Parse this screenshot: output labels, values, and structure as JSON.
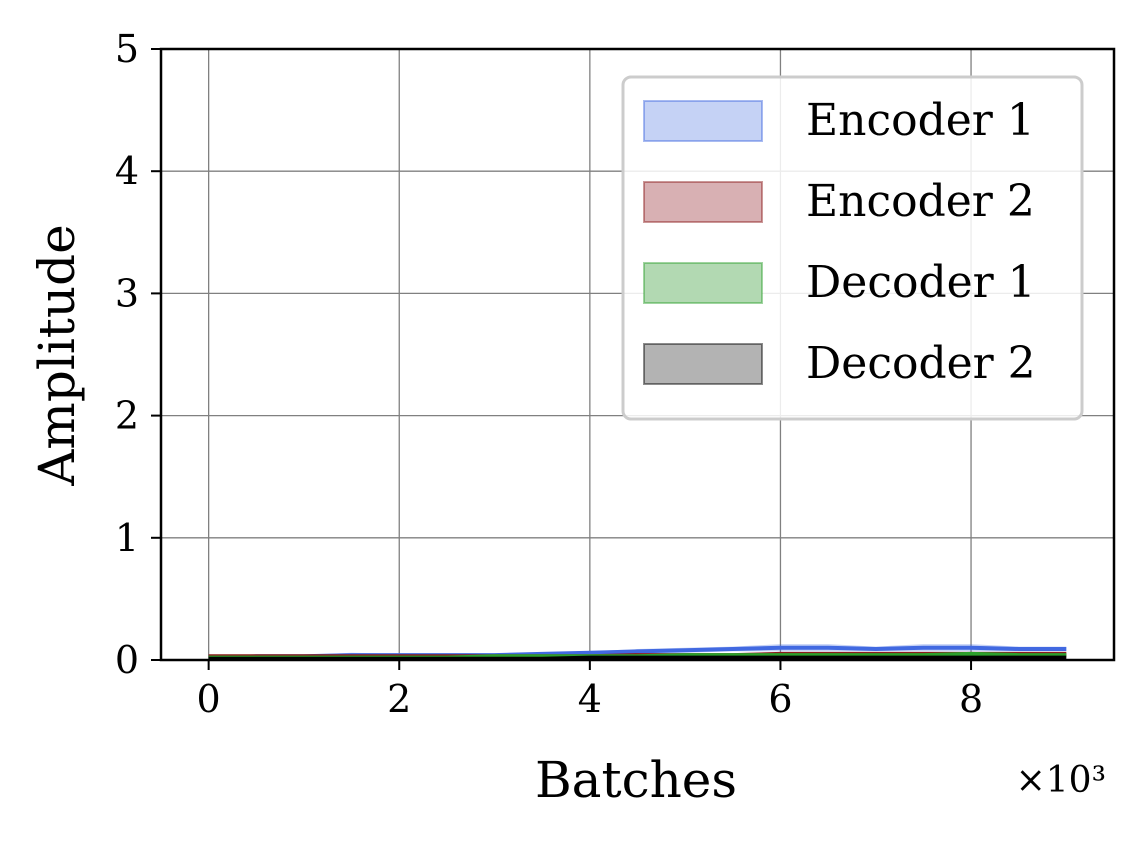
{
  "chart_data": {
    "type": "area",
    "xlabel": "Batches",
    "ylabel": "Amplitude",
    "x_multiplier_label": "×10³",
    "xlim": [
      -0.5,
      9.5
    ],
    "ylim": [
      0,
      5
    ],
    "xticks": [
      0,
      2,
      4,
      6,
      8
    ],
    "yticks": [
      0,
      1,
      2,
      3,
      4,
      5
    ],
    "xtick_labels": [
      "0",
      "2",
      "4",
      "6",
      "8"
    ],
    "ytick_labels": [
      "0",
      "1",
      "2",
      "3",
      "4",
      "5"
    ],
    "grid": true,
    "legend_placement": "top-right",
    "x": [
      0,
      0.5,
      1,
      1.5,
      2,
      2.5,
      3,
      3.5,
      4,
      4.5,
      5,
      5.5,
      6,
      6.5,
      7,
      7.5,
      8,
      8.5,
      9
    ],
    "series": [
      {
        "name": "Encoder 1",
        "color": "#4169e1",
        "fill": "#c5d2f5",
        "values": [
          0.02,
          0.03,
          0.03,
          0.04,
          0.04,
          0.04,
          0.04,
          0.05,
          0.06,
          0.07,
          0.08,
          0.09,
          0.1,
          0.1,
          0.09,
          0.1,
          0.1,
          0.09,
          0.09
        ],
        "band": [
          0.01,
          0.01,
          0.01,
          0.02,
          0.01,
          0.01,
          0.01,
          0.01,
          0.01,
          0.02,
          0.02,
          0.02,
          0.03,
          0.03,
          0.02,
          0.03,
          0.03,
          0.02,
          0.02
        ]
      },
      {
        "name": "Encoder 2",
        "color": "#8b1a1a",
        "fill": "#d8b0b3",
        "values": [
          0.03,
          0.03,
          0.03,
          0.03,
          0.03,
          0.03,
          0.03,
          0.03,
          0.03,
          0.04,
          0.04,
          0.04,
          0.05,
          0.05,
          0.05,
          0.05,
          0.05,
          0.05,
          0.05
        ],
        "band": [
          0.01,
          0.01,
          0.01,
          0.01,
          0.01,
          0.01,
          0.01,
          0.01,
          0.01,
          0.01,
          0.01,
          0.01,
          0.01,
          0.01,
          0.01,
          0.01,
          0.01,
          0.01,
          0.01
        ]
      },
      {
        "name": "Decoder 1",
        "color": "#2ca02c",
        "fill": "#b2d9b2",
        "values": [
          0.02,
          0.02,
          0.02,
          0.02,
          0.02,
          0.02,
          0.03,
          0.03,
          0.03,
          0.03,
          0.04,
          0.04,
          0.04,
          0.04,
          0.04,
          0.04,
          0.05,
          0.04,
          0.04
        ],
        "band": [
          0.005,
          0.005,
          0.005,
          0.005,
          0.005,
          0.005,
          0.005,
          0.005,
          0.005,
          0.005,
          0.01,
          0.01,
          0.01,
          0.01,
          0.01,
          0.01,
          0.01,
          0.01,
          0.01
        ]
      },
      {
        "name": "Decoder 2",
        "color": "#000000",
        "fill": "#b3b3b3",
        "values": [
          0.01,
          0.01,
          0.01,
          0.01,
          0.01,
          0.01,
          0.01,
          0.01,
          0.02,
          0.02,
          0.02,
          0.02,
          0.02,
          0.02,
          0.02,
          0.02,
          0.02,
          0.02,
          0.02
        ],
        "band": [
          0.005,
          0.005,
          0.005,
          0.005,
          0.005,
          0.005,
          0.005,
          0.005,
          0.005,
          0.005,
          0.005,
          0.005,
          0.005,
          0.005,
          0.005,
          0.005,
          0.005,
          0.005,
          0.005
        ]
      }
    ]
  }
}
